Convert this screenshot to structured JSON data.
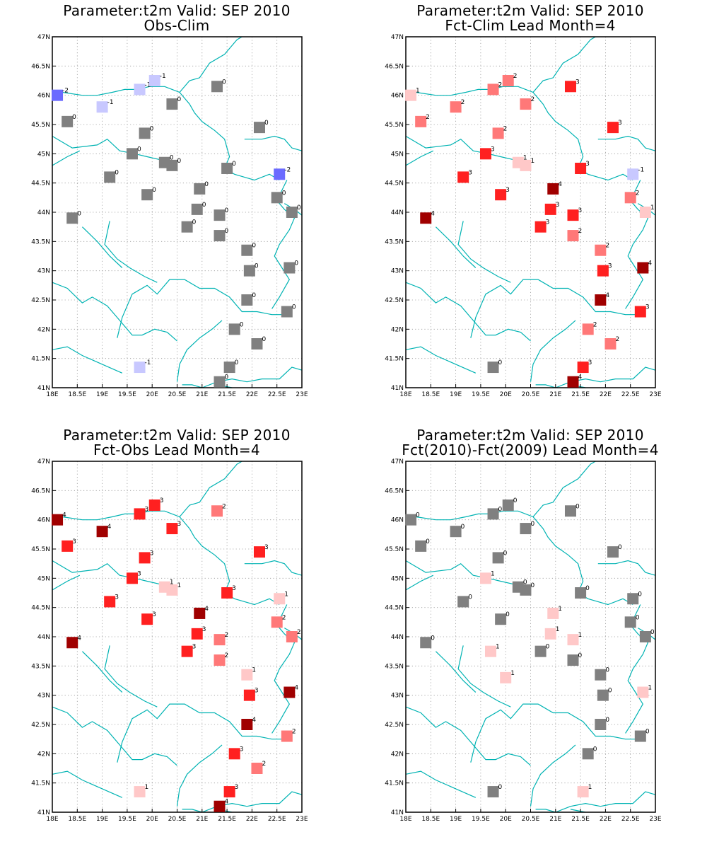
{
  "common": {
    "lon_ticks": [
      "18E",
      "18.5E",
      "19E",
      "19.5E",
      "20E",
      "20.5E",
      "21E",
      "21.5E",
      "22E",
      "22.5E",
      "23E"
    ],
    "lat_ticks": [
      "41N",
      "41.5N",
      "42N",
      "42.5N",
      "43N",
      "43.5N",
      "44N",
      "44.5N",
      "45N",
      "45.5N",
      "46N",
      "46.5N",
      "47N"
    ],
    "lon_range": [
      18,
      23
    ],
    "lat_range": [
      41,
      47
    ],
    "color_scale": {
      "-2": "#6b6bff",
      "-1": "#c8c8ff",
      "0": "#808080",
      "1": "#ffc8c8",
      "2": "#ff7878",
      "3": "#ff2020",
      "4": "#a00000"
    },
    "border_color": "#00b3b3"
  },
  "panels": [
    {
      "title1": "Parameter:t2m Valid: SEP 2010",
      "title2": "Obs-Clim",
      "points": [
        {
          "lon": 18.1,
          "lat": 46.0,
          "v": -2
        },
        {
          "lon": 19.75,
          "lat": 46.1,
          "v": -1
        },
        {
          "lon": 20.05,
          "lat": 46.25,
          "v": -1
        },
        {
          "lon": 19.0,
          "lat": 45.8,
          "v": -1
        },
        {
          "lon": 18.3,
          "lat": 45.55,
          "v": 0
        },
        {
          "lon": 20.4,
          "lat": 45.85,
          "v": 0
        },
        {
          "lon": 21.3,
          "lat": 46.15,
          "v": 0
        },
        {
          "lon": 22.15,
          "lat": 45.45,
          "v": 0
        },
        {
          "lon": 19.85,
          "lat": 45.35,
          "v": 0
        },
        {
          "lon": 19.6,
          "lat": 45.0,
          "v": 0
        },
        {
          "lon": 20.25,
          "lat": 44.85,
          "v": 0
        },
        {
          "lon": 20.4,
          "lat": 44.8,
          "v": 0
        },
        {
          "lon": 21.5,
          "lat": 44.75,
          "v": 0
        },
        {
          "lon": 22.55,
          "lat": 44.65,
          "v": -2
        },
        {
          "lon": 19.15,
          "lat": 44.6,
          "v": 0
        },
        {
          "lon": 19.9,
          "lat": 44.3,
          "v": 0
        },
        {
          "lon": 20.95,
          "lat": 44.4,
          "v": 0
        },
        {
          "lon": 22.5,
          "lat": 44.25,
          "v": 0
        },
        {
          "lon": 20.9,
          "lat": 44.05,
          "v": 0
        },
        {
          "lon": 21.35,
          "lat": 43.95,
          "v": 0
        },
        {
          "lon": 22.8,
          "lat": 44.0,
          "v": 0
        },
        {
          "lon": 18.4,
          "lat": 43.9,
          "v": 0
        },
        {
          "lon": 20.7,
          "lat": 43.75,
          "v": 0
        },
        {
          "lon": 21.35,
          "lat": 43.6,
          "v": 0
        },
        {
          "lon": 21.9,
          "lat": 43.35,
          "v": 0
        },
        {
          "lon": 21.95,
          "lat": 43.0,
          "v": 0
        },
        {
          "lon": 22.75,
          "lat": 43.05,
          "v": 0
        },
        {
          "lon": 21.9,
          "lat": 42.5,
          "v": 0
        },
        {
          "lon": 22.7,
          "lat": 42.3,
          "v": 0
        },
        {
          "lon": 21.65,
          "lat": 42.0,
          "v": 0
        },
        {
          "lon": 22.1,
          "lat": 41.75,
          "v": 0
        },
        {
          "lon": 19.75,
          "lat": 41.35,
          "v": -1
        },
        {
          "lon": 21.55,
          "lat": 41.35,
          "v": 0
        },
        {
          "lon": 21.35,
          "lat": 41.1,
          "v": 0
        }
      ]
    },
    {
      "title1": "Parameter:t2m Valid: SEP 2010",
      "title2": "Fct-Clim Lead Month=4",
      "points": [
        {
          "lon": 18.1,
          "lat": 46.0,
          "v": 1
        },
        {
          "lon": 19.75,
          "lat": 46.1,
          "v": 2
        },
        {
          "lon": 20.05,
          "lat": 46.25,
          "v": 2
        },
        {
          "lon": 19.0,
          "lat": 45.8,
          "v": 2
        },
        {
          "lon": 18.3,
          "lat": 45.55,
          "v": 2
        },
        {
          "lon": 20.4,
          "lat": 45.85,
          "v": 2
        },
        {
          "lon": 21.3,
          "lat": 46.15,
          "v": 3
        },
        {
          "lon": 22.15,
          "lat": 45.45,
          "v": 3
        },
        {
          "lon": 19.85,
          "lat": 45.35,
          "v": 2
        },
        {
          "lon": 19.6,
          "lat": 45.0,
          "v": 3
        },
        {
          "lon": 20.25,
          "lat": 44.85,
          "v": 1
        },
        {
          "lon": 20.4,
          "lat": 44.8,
          "v": 1
        },
        {
          "lon": 21.5,
          "lat": 44.75,
          "v": 3
        },
        {
          "lon": 22.55,
          "lat": 44.65,
          "v": -1
        },
        {
          "lon": 19.15,
          "lat": 44.6,
          "v": 3
        },
        {
          "lon": 19.9,
          "lat": 44.3,
          "v": 3
        },
        {
          "lon": 20.95,
          "lat": 44.4,
          "v": 4
        },
        {
          "lon": 22.5,
          "lat": 44.25,
          "v": 2
        },
        {
          "lon": 20.9,
          "lat": 44.05,
          "v": 3
        },
        {
          "lon": 21.35,
          "lat": 43.95,
          "v": 3
        },
        {
          "lon": 22.8,
          "lat": 44.0,
          "v": 1
        },
        {
          "lon": 18.4,
          "lat": 43.9,
          "v": 4
        },
        {
          "lon": 20.7,
          "lat": 43.75,
          "v": 3
        },
        {
          "lon": 21.35,
          "lat": 43.6,
          "v": 2
        },
        {
          "lon": 21.9,
          "lat": 43.35,
          "v": 2
        },
        {
          "lon": 21.95,
          "lat": 43.0,
          "v": 3
        },
        {
          "lon": 22.75,
          "lat": 43.05,
          "v": 4
        },
        {
          "lon": 21.9,
          "lat": 42.5,
          "v": 4
        },
        {
          "lon": 22.7,
          "lat": 42.3,
          "v": 3
        },
        {
          "lon": 21.65,
          "lat": 42.0,
          "v": 2
        },
        {
          "lon": 22.1,
          "lat": 41.75,
          "v": 2
        },
        {
          "lon": 19.75,
          "lat": 41.35,
          "v": 0
        },
        {
          "lon": 21.55,
          "lat": 41.35,
          "v": 3
        },
        {
          "lon": 21.35,
          "lat": 41.1,
          "v": 4
        }
      ]
    },
    {
      "title1": "Parameter:t2m Valid: SEP 2010",
      "title2": "Fct-Obs Lead Month=4",
      "points": [
        {
          "lon": 18.1,
          "lat": 46.0,
          "v": 4
        },
        {
          "lon": 19.75,
          "lat": 46.1,
          "v": 3
        },
        {
          "lon": 20.05,
          "lat": 46.25,
          "v": 3
        },
        {
          "lon": 19.0,
          "lat": 45.8,
          "v": 4
        },
        {
          "lon": 18.3,
          "lat": 45.55,
          "v": 3
        },
        {
          "lon": 20.4,
          "lat": 45.85,
          "v": 3
        },
        {
          "lon": 21.3,
          "lat": 46.15,
          "v": 2
        },
        {
          "lon": 22.15,
          "lat": 45.45,
          "v": 3
        },
        {
          "lon": 19.85,
          "lat": 45.35,
          "v": 3
        },
        {
          "lon": 19.6,
          "lat": 45.0,
          "v": 3
        },
        {
          "lon": 20.25,
          "lat": 44.85,
          "v": 1
        },
        {
          "lon": 20.4,
          "lat": 44.8,
          "v": 1
        },
        {
          "lon": 21.5,
          "lat": 44.75,
          "v": 3
        },
        {
          "lon": 22.55,
          "lat": 44.65,
          "v": 1
        },
        {
          "lon": 19.15,
          "lat": 44.6,
          "v": 3
        },
        {
          "lon": 19.9,
          "lat": 44.3,
          "v": 3
        },
        {
          "lon": 20.95,
          "lat": 44.4,
          "v": 4
        },
        {
          "lon": 22.5,
          "lat": 44.25,
          "v": 2
        },
        {
          "lon": 20.9,
          "lat": 44.05,
          "v": 3
        },
        {
          "lon": 21.35,
          "lat": 43.95,
          "v": 2
        },
        {
          "lon": 22.8,
          "lat": 44.0,
          "v": 2
        },
        {
          "lon": 18.4,
          "lat": 43.9,
          "v": 4
        },
        {
          "lon": 20.7,
          "lat": 43.75,
          "v": 3
        },
        {
          "lon": 21.35,
          "lat": 43.6,
          "v": 2
        },
        {
          "lon": 21.9,
          "lat": 43.35,
          "v": 1
        },
        {
          "lon": 21.95,
          "lat": 43.0,
          "v": 3
        },
        {
          "lon": 22.75,
          "lat": 43.05,
          "v": 4
        },
        {
          "lon": 21.9,
          "lat": 42.5,
          "v": 4
        },
        {
          "lon": 22.7,
          "lat": 42.3,
          "v": 2
        },
        {
          "lon": 21.65,
          "lat": 42.0,
          "v": 3
        },
        {
          "lon": 22.1,
          "lat": 41.75,
          "v": 2
        },
        {
          "lon": 19.75,
          "lat": 41.35,
          "v": 1
        },
        {
          "lon": 21.55,
          "lat": 41.35,
          "v": 3
        },
        {
          "lon": 21.35,
          "lat": 41.1,
          "v": 4
        }
      ]
    },
    {
      "title1": "Parameter:t2m Valid: SEP 2010",
      "title2": "Fct(2010)-Fct(2009) Lead Month=4",
      "points": [
        {
          "lon": 18.1,
          "lat": 46.0,
          "v": 0
        },
        {
          "lon": 19.75,
          "lat": 46.1,
          "v": 0
        },
        {
          "lon": 20.05,
          "lat": 46.25,
          "v": 0
        },
        {
          "lon": 19.0,
          "lat": 45.8,
          "v": 0
        },
        {
          "lon": 18.3,
          "lat": 45.55,
          "v": 0
        },
        {
          "lon": 20.4,
          "lat": 45.85,
          "v": 0
        },
        {
          "lon": 21.3,
          "lat": 46.15,
          "v": 0
        },
        {
          "lon": 22.15,
          "lat": 45.45,
          "v": 0
        },
        {
          "lon": 19.85,
          "lat": 45.35,
          "v": 0
        },
        {
          "lon": 19.6,
          "lat": 45.0,
          "v": 1
        },
        {
          "lon": 20.25,
          "lat": 44.85,
          "v": 0
        },
        {
          "lon": 20.4,
          "lat": 44.8,
          "v": 0
        },
        {
          "lon": 21.5,
          "lat": 44.75,
          "v": 0
        },
        {
          "lon": 22.55,
          "lat": 44.65,
          "v": 0
        },
        {
          "lon": 19.15,
          "lat": 44.6,
          "v": 0
        },
        {
          "lon": 19.9,
          "lat": 44.3,
          "v": 0
        },
        {
          "lon": 20.95,
          "lat": 44.4,
          "v": 1
        },
        {
          "lon": 22.5,
          "lat": 44.25,
          "v": 0
        },
        {
          "lon": 20.9,
          "lat": 44.05,
          "v": 1
        },
        {
          "lon": 21.35,
          "lat": 43.95,
          "v": 1
        },
        {
          "lon": 22.8,
          "lat": 44.0,
          "v": 0
        },
        {
          "lon": 18.4,
          "lat": 43.9,
          "v": 0
        },
        {
          "lon": 19.7,
          "lat": 43.75,
          "v": 1
        },
        {
          "lon": 20.7,
          "lat": 43.75,
          "v": 0
        },
        {
          "lon": 21.35,
          "lat": 43.6,
          "v": 0
        },
        {
          "lon": 21.9,
          "lat": 43.35,
          "v": 0
        },
        {
          "lon": 20.0,
          "lat": 43.3,
          "v": 1
        },
        {
          "lon": 21.95,
          "lat": 43.0,
          "v": 0
        },
        {
          "lon": 22.75,
          "lat": 43.05,
          "v": 1
        },
        {
          "lon": 21.9,
          "lat": 42.5,
          "v": 0
        },
        {
          "lon": 22.7,
          "lat": 42.3,
          "v": 0
        },
        {
          "lon": 21.65,
          "lat": 42.0,
          "v": 0
        },
        {
          "lon": 19.75,
          "lat": 41.35,
          "v": 0
        },
        {
          "lon": 21.55,
          "lat": 41.35,
          "v": 1
        }
      ]
    }
  ]
}
